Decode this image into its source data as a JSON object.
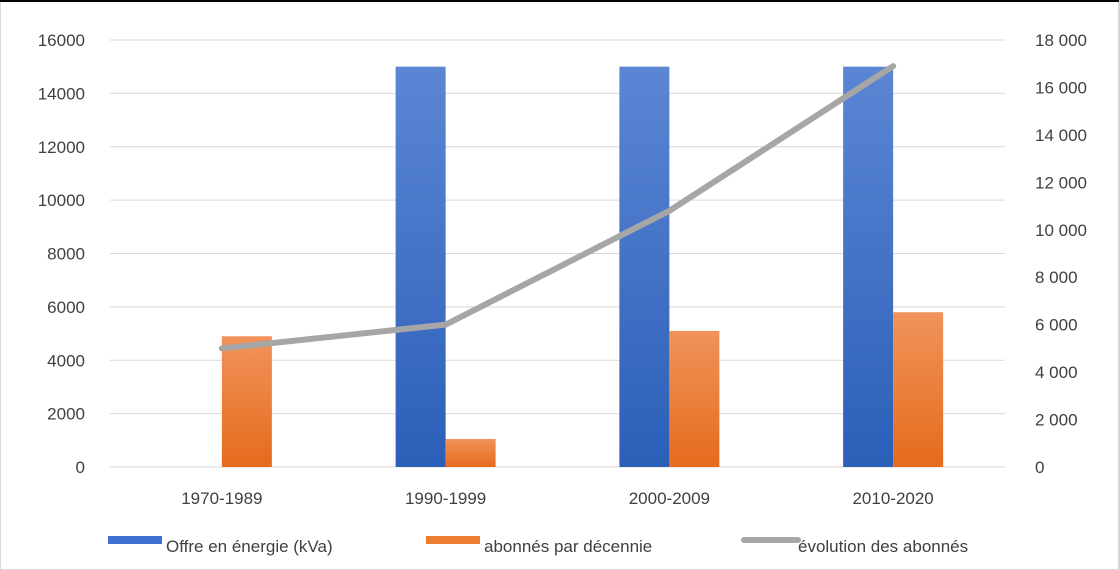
{
  "colors": {
    "offre": "#3f6fcf",
    "abonnes": "#ed7d31",
    "evolution": "#a6a6a6",
    "grid": "#d9d9d9",
    "text": "#404040"
  },
  "chart_data": {
    "type": "bar",
    "categories": [
      "1970-1989",
      "1990-1999",
      "2000-2009",
      "2010-2020"
    ],
    "series": [
      {
        "name": "Offre en énergie (kVa)",
        "type": "bar",
        "axis": "left",
        "values": [
          0,
          15000,
          15000,
          15000
        ]
      },
      {
        "name": "abonnés par décennie",
        "type": "bar",
        "axis": "left",
        "values": [
          4900,
          1050,
          5100,
          5800
        ]
      },
      {
        "name": "évolution des abonnés",
        "type": "line",
        "axis": "right",
        "values": [
          5000,
          6000,
          10800,
          16900
        ]
      }
    ],
    "y_left": {
      "lim": [
        0,
        16000
      ],
      "ticks": [
        "0",
        "2000",
        "4000",
        "6000",
        "8000",
        "10000",
        "12000",
        "14000",
        "16000"
      ]
    },
    "y_right": {
      "lim": [
        0,
        18000
      ],
      "ticks": [
        "0",
        "2 000",
        "4 000",
        "6 000",
        "8 000",
        "10 000",
        "12 000",
        "14 000",
        "16 000",
        "18 000"
      ]
    },
    "grid": "horizontal",
    "legend_position": "bottom"
  }
}
